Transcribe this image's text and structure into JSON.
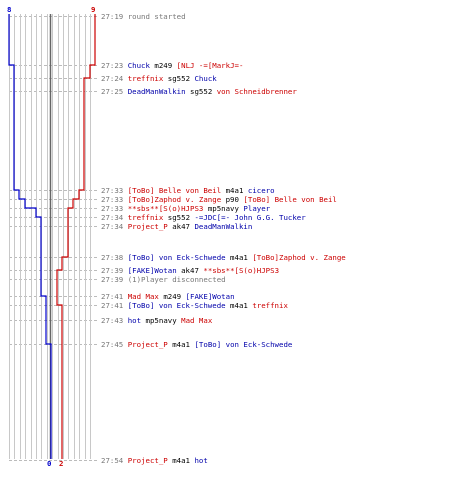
{
  "colors": {
    "red": "#cc0000",
    "blue": "#0000cc",
    "grid": "#c8c8c8",
    "dash": "#bbbbbb",
    "center": "#666666",
    "time": "#777777"
  },
  "scores": {
    "blue_top": "8",
    "red_top": "9",
    "blue_bottom": "0",
    "red_bottom": "2"
  },
  "events": [
    {
      "time": "27:19",
      "system": "round started"
    },
    {
      "time": "27:23",
      "killer": "Chuck",
      "killer_team": "blue",
      "weapon": "m249",
      "victim": "[NLJ -=[MarkJ=-",
      "victim_team": "red"
    },
    {
      "time": "27:24",
      "killer": "treffnix",
      "killer_team": "red",
      "weapon": "sg552",
      "victim": "Chuck",
      "victim_team": "blue"
    },
    {
      "time": "27:25",
      "killer": "DeadManWalkin",
      "killer_team": "blue",
      "weapon": "sg552",
      "victim": "von Schneidbrenner",
      "victim_team": "red"
    },
    {
      "time": "27:33",
      "killer": "[ToBo] Belle von Beil",
      "killer_team": "red",
      "weapon": "m4a1",
      "victim": "cicero",
      "victim_team": "blue"
    },
    {
      "time": "27:33",
      "killer": "[ToBo]Zaphod v. Zange",
      "killer_team": "red",
      "weapon": "p90",
      "victim": "[ToBo] Belle von Beil",
      "victim_team": "red"
    },
    {
      "time": "27:33",
      "killer": "**sbs**[S(o)HJPS3",
      "killer_team": "red",
      "weapon": "mp5navy",
      "victim": "Player",
      "victim_team": "blue"
    },
    {
      "time": "27:34",
      "killer": "treffnix",
      "killer_team": "red",
      "weapon": "sg552",
      "victim": "-=JDC[=- John G.G. Tucker",
      "victim_team": "blue"
    },
    {
      "time": "27:34",
      "killer": "Project_P",
      "killer_team": "red",
      "weapon": "ak47",
      "victim": "DeadManWalkin",
      "victim_team": "blue"
    },
    {
      "time": "27:38",
      "killer": "[ToBo] von Eck-Schwede",
      "killer_team": "blue",
      "weapon": "m4a1",
      "victim": "[ToBo]Zaphod v. Zange",
      "victim_team": "red"
    },
    {
      "time": "27:39",
      "killer": "[FAKE]Wotan",
      "killer_team": "blue",
      "weapon": "ak47",
      "victim": "**sbs**[S(o)HJPS3",
      "victim_team": "red"
    },
    {
      "time": "27:39",
      "system": "(1)Player disconnected"
    },
    {
      "time": "27:41",
      "killer": "Mad Max",
      "killer_team": "red",
      "weapon": "m249",
      "victim": "[FAKE]Wotan",
      "victim_team": "blue"
    },
    {
      "time": "27:41",
      "killer": "[ToBo] von Eck-Schwede",
      "killer_team": "blue",
      "weapon": "m4a1",
      "victim": "treffnix",
      "victim_team": "red"
    },
    {
      "time": "27:43",
      "killer": "hot",
      "killer_team": "blue",
      "weapon": "mp5navy",
      "victim": "Mad Max",
      "victim_team": "red"
    },
    {
      "time": "27:45",
      "killer": "Project_P",
      "killer_team": "red",
      "weapon": "m4a1",
      "victim": "[ToBo] von Eck-Schwede",
      "victim_team": "blue"
    },
    {
      "time": "27:54",
      "killer": "Project_P",
      "killer_team": "red",
      "weapon": "m4a1",
      "victim": "hot",
      "victim_team": "blue"
    }
  ]
}
